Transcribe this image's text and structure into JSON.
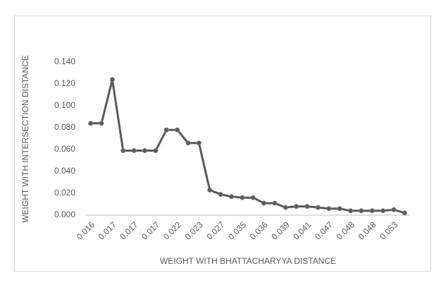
{
  "chart_data": {
    "type": "line",
    "xlabel": "WEIGHT WITH BHATTACHARYYA DISTANCE",
    "ylabel": "WEIGHT WITH INTERSECTION DISTANCE",
    "categories": [
      "0.016",
      null,
      "0.017",
      null,
      "0.017",
      null,
      "0.017",
      null,
      "0.022",
      null,
      "0.023",
      null,
      "0.027",
      null,
      "0.035",
      null,
      "0.036",
      null,
      "0.039",
      null,
      "0.041",
      null,
      "0.047",
      null,
      "0.048",
      null,
      "0.048",
      null,
      "0.053",
      null
    ],
    "series": [
      {
        "color": "#595959",
        "values": [
          0.084,
          0.084,
          0.124,
          0.059,
          0.059,
          0.059,
          0.059,
          0.078,
          0.078,
          0.066,
          0.066,
          0.023,
          0.019,
          0.017,
          0.016,
          0.016,
          0.011,
          0.011,
          0.007,
          0.008,
          0.008,
          0.007,
          0.006,
          0.006,
          0.004,
          0.004,
          0.004,
          0.004,
          0.005,
          0.002
        ]
      }
    ],
    "ylim": [
      0,
      0.14
    ],
    "yticks": [
      {
        "value": 0,
        "label": "0.000"
      },
      {
        "value": 0.02,
        "label": "0.020"
      },
      {
        "value": 0.04,
        "label": "0.040"
      },
      {
        "value": 0.06,
        "label": "0.060"
      },
      {
        "value": 0.08,
        "label": "0.080"
      },
      {
        "value": 0.1,
        "label": "0.100"
      },
      {
        "value": 0.12,
        "label": "0.120"
      },
      {
        "value": 0.14,
        "label": "0.140"
      }
    ],
    "grid": false
  }
}
